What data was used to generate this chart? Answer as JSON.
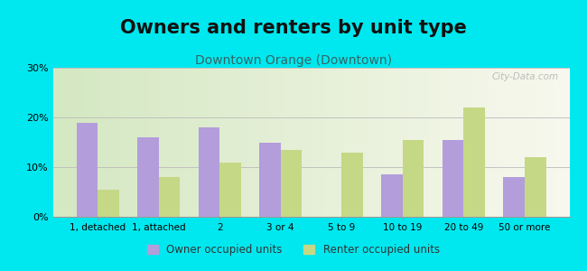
{
  "title": "Owners and renters by unit type",
  "subtitle": "Downtown Orange (Downtown)",
  "categories": [
    "1, detached",
    "1, attached",
    "2",
    "3 or 4",
    "5 to 9",
    "10 to 19",
    "20 to 49",
    "50 or more"
  ],
  "owner_values": [
    19,
    16,
    18,
    15,
    0,
    8.5,
    15.5,
    8
  ],
  "renter_values": [
    5.5,
    8,
    11,
    13.5,
    13,
    15.5,
    22,
    12
  ],
  "owner_color": "#b39ddb",
  "renter_color": "#c5d885",
  "ylim": [
    0,
    30
  ],
  "yticks": [
    0,
    10,
    20,
    30
  ],
  "ytick_labels": [
    "0%",
    "10%",
    "20%",
    "30%"
  ],
  "figure_bg": "#00e8ef",
  "chart_bg_left": "#d0e8c8",
  "chart_bg_right": "#f5f5e8",
  "grid_color": "#bbbbbb",
  "bar_width": 0.35,
  "title_fontsize": 15,
  "subtitle_fontsize": 10,
  "legend_labels": [
    "Owner occupied units",
    "Renter occupied units"
  ],
  "watermark": "City-Data.com"
}
